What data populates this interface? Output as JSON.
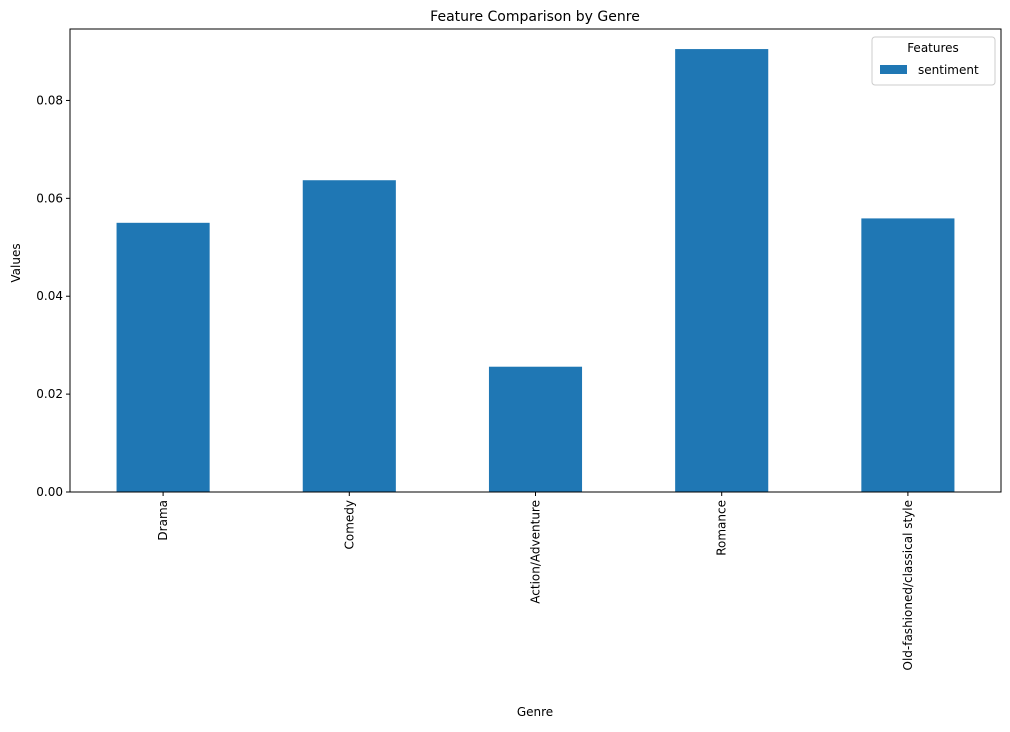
{
  "chart_data": {
    "type": "bar",
    "title": "Feature Comparison by Genre",
    "xlabel": "Genre",
    "ylabel": "Values",
    "categories": [
      "Drama",
      "Comedy",
      "Action/Adventure",
      "Romance",
      "Old-fashioned/classical style"
    ],
    "series": [
      {
        "name": "sentiment",
        "color": "#1f77b4",
        "values": [
          0.055,
          0.0637,
          0.0256,
          0.0905,
          0.0559
        ]
      }
    ],
    "ylim": [
      0,
      0.0946
    ],
    "yticks": [
      0.0,
      0.02,
      0.04,
      0.06,
      0.08
    ],
    "ytick_labels": [
      "0.00",
      "0.02",
      "0.04",
      "0.06",
      "0.08"
    ],
    "grid": false,
    "legend": {
      "title": "Features",
      "placement": "top-right"
    }
  }
}
